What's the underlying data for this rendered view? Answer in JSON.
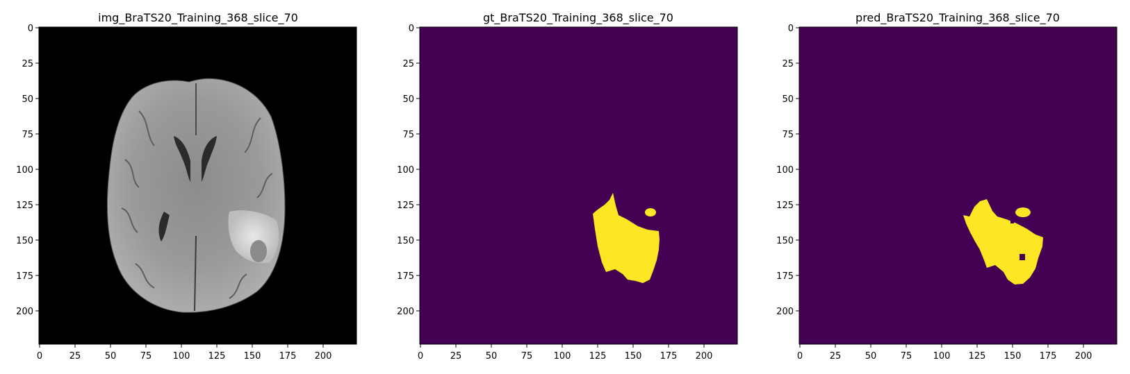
{
  "figure": {
    "panels": [
      {
        "id": "img",
        "title": "img_BraTS20_Training_368_slice_70",
        "kind": "grayscale-mri",
        "background_color": "#000000"
      },
      {
        "id": "gt",
        "title": "gt_BraTS20_Training_368_slice_70",
        "kind": "mask",
        "background_color": "#440154",
        "mask_color": "#fde725"
      },
      {
        "id": "pred",
        "title": "pred_BraTS20_Training_368_slice_70",
        "kind": "mask",
        "background_color": "#440154",
        "mask_color": "#fde725"
      }
    ],
    "x_ticks": [
      "0",
      "25",
      "50",
      "75",
      "100",
      "125",
      "150",
      "175",
      "200"
    ],
    "y_ticks": [
      "0",
      "25",
      "50",
      "75",
      "100",
      "125",
      "150",
      "175",
      "200"
    ],
    "image_extent": [
      224,
      224
    ]
  }
}
